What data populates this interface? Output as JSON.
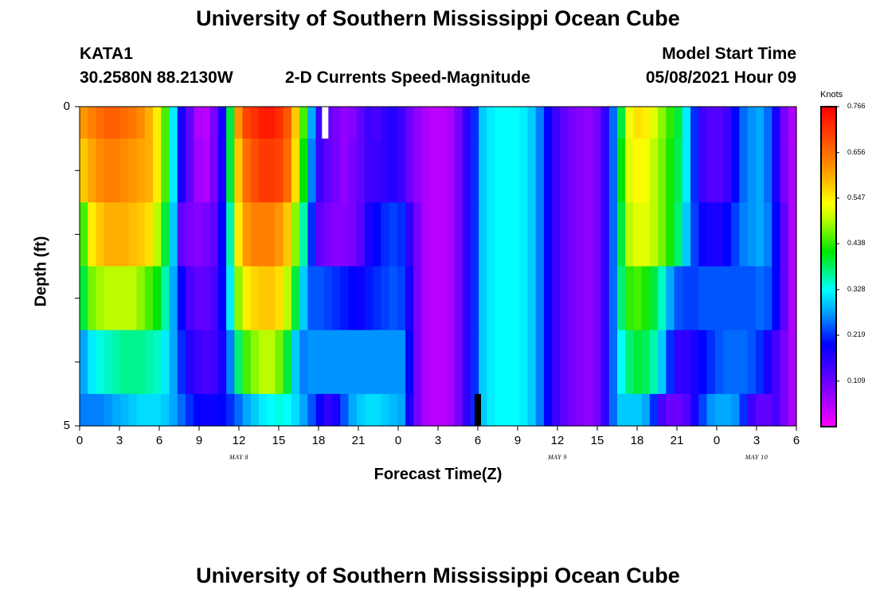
{
  "header": {
    "title_top": "University of Southern Mississippi Ocean Cube",
    "station": "KATA1",
    "coords": "30.2580N  88.2130W",
    "plot_title": "2-D Currents Speed-Magnitude",
    "model_label": "Model Start Time",
    "model_time": "05/08/2021 Hour 09"
  },
  "footer": {
    "title_bottom": "University of Southern Mississippi Ocean Cube"
  },
  "colorbar": {
    "unit": "Knots",
    "ticks": [
      "0.766",
      "0.656",
      "0.547",
      "0.438",
      "0.328",
      "0.219",
      "0.109"
    ],
    "min": 0.0,
    "max": 0.766
  },
  "chart_data": {
    "type": "heatmap",
    "title": "2-D Currents Speed-Magnitude",
    "xlabel": "Forecast Time(Z)",
    "ylabel": "Depth (ft)",
    "unit": "Knots",
    "x_tick_labels": [
      "0",
      "3",
      "6",
      "9",
      "12",
      "15",
      "18",
      "21",
      "0",
      "3",
      "6",
      "9",
      "12",
      "15",
      "18",
      "21",
      "0",
      "3",
      "6"
    ],
    "date_labels": [
      {
        "label": "MAY 8",
        "hour": 12
      },
      {
        "label": "MAY 9",
        "hour": 36
      },
      {
        "label": "MAY 10",
        "hour": 51
      }
    ],
    "y_tick_labels": [
      "0",
      "5"
    ],
    "xlim_hours": [
      0,
      54
    ],
    "ylim_ft": [
      0,
      5
    ],
    "depth_rows_ft": [
      0.5,
      1.5,
      2.5,
      3.5,
      4.5,
      5.0
    ],
    "marker_start_hour": 18.5,
    "marker_end_hour": 30,
    "rows": [
      [
        0.62,
        0.64,
        0.66,
        0.67,
        0.67,
        0.66,
        0.65,
        0.63,
        0.6,
        0.55,
        0.45,
        0.32,
        0.18,
        0.12,
        0.06,
        0.05,
        0.1,
        0.18,
        0.4,
        0.62,
        0.7,
        0.72,
        0.74,
        0.74,
        0.72,
        0.68,
        0.58,
        0.45,
        0.28,
        0.15,
        0.12,
        0.1,
        0.08,
        0.09,
        0.12,
        0.15,
        0.14,
        0.16,
        0.17,
        0.15,
        0.11,
        0.08,
        0.06,
        0.05,
        0.05,
        0.06,
        0.1,
        0.16,
        0.22,
        0.3,
        0.32,
        0.33,
        0.33,
        0.33,
        0.32,
        0.3,
        0.26,
        0.2,
        0.15,
        0.12,
        0.1,
        0.09,
        0.08,
        0.1,
        0.16,
        0.25,
        0.4,
        0.53,
        0.56,
        0.55,
        0.52,
        0.48,
        0.44,
        0.4,
        0.32,
        0.22,
        0.15,
        0.13,
        0.13,
        0.15,
        0.2,
        0.25,
        0.27,
        0.28,
        0.25,
        0.18,
        0.1,
        0.06
      ],
      [
        0.58,
        0.61,
        0.63,
        0.64,
        0.64,
        0.63,
        0.62,
        0.61,
        0.6,
        0.55,
        0.45,
        0.32,
        0.18,
        0.12,
        0.07,
        0.06,
        0.1,
        0.18,
        0.4,
        0.58,
        0.66,
        0.69,
        0.71,
        0.71,
        0.7,
        0.66,
        0.56,
        0.42,
        0.26,
        0.15,
        0.12,
        0.1,
        0.08,
        0.1,
        0.12,
        0.15,
        0.15,
        0.16,
        0.17,
        0.15,
        0.11,
        0.08,
        0.06,
        0.05,
        0.05,
        0.06,
        0.1,
        0.16,
        0.22,
        0.3,
        0.32,
        0.33,
        0.33,
        0.33,
        0.32,
        0.3,
        0.26,
        0.2,
        0.15,
        0.12,
        0.1,
        0.09,
        0.08,
        0.1,
        0.16,
        0.25,
        0.42,
        0.52,
        0.54,
        0.53,
        0.5,
        0.47,
        0.43,
        0.39,
        0.32,
        0.22,
        0.15,
        0.13,
        0.13,
        0.15,
        0.2,
        0.25,
        0.27,
        0.28,
        0.25,
        0.18,
        0.1,
        0.06
      ],
      [
        0.45,
        0.55,
        0.58,
        0.6,
        0.6,
        0.6,
        0.59,
        0.58,
        0.56,
        0.5,
        0.4,
        0.3,
        0.12,
        0.1,
        0.09,
        0.1,
        0.12,
        0.2,
        0.36,
        0.55,
        0.62,
        0.64,
        0.64,
        0.64,
        0.62,
        0.58,
        0.48,
        0.36,
        0.22,
        0.12,
        0.1,
        0.09,
        0.09,
        0.1,
        0.13,
        0.18,
        0.2,
        0.22,
        0.23,
        0.22,
        0.16,
        0.1,
        0.06,
        0.05,
        0.05,
        0.06,
        0.1,
        0.16,
        0.22,
        0.3,
        0.32,
        0.33,
        0.33,
        0.33,
        0.32,
        0.3,
        0.26,
        0.2,
        0.15,
        0.12,
        0.1,
        0.09,
        0.08,
        0.1,
        0.16,
        0.25,
        0.4,
        0.5,
        0.52,
        0.52,
        0.5,
        0.47,
        0.43,
        0.38,
        0.3,
        0.23,
        0.19,
        0.18,
        0.18,
        0.2,
        0.23,
        0.26,
        0.27,
        0.28,
        0.26,
        0.2,
        0.12,
        0.06
      ],
      [
        0.4,
        0.47,
        0.49,
        0.5,
        0.5,
        0.5,
        0.5,
        0.48,
        0.45,
        0.42,
        0.36,
        0.28,
        0.2,
        0.14,
        0.12,
        0.12,
        0.14,
        0.2,
        0.32,
        0.48,
        0.55,
        0.57,
        0.58,
        0.58,
        0.56,
        0.5,
        0.4,
        0.3,
        0.24,
        0.24,
        0.23,
        0.22,
        0.21,
        0.2,
        0.19,
        0.21,
        0.22,
        0.23,
        0.24,
        0.23,
        0.18,
        0.1,
        0.06,
        0.05,
        0.05,
        0.06,
        0.1,
        0.16,
        0.22,
        0.3,
        0.32,
        0.33,
        0.33,
        0.33,
        0.32,
        0.3,
        0.26,
        0.2,
        0.15,
        0.12,
        0.1,
        0.09,
        0.08,
        0.1,
        0.16,
        0.25,
        0.38,
        0.44,
        0.45,
        0.43,
        0.4,
        0.35,
        0.28,
        0.24,
        0.23,
        0.23,
        0.24,
        0.24,
        0.24,
        0.24,
        0.24,
        0.24,
        0.24,
        0.25,
        0.24,
        0.2,
        0.12,
        0.06
      ],
      [
        0.28,
        0.32,
        0.34,
        0.35,
        0.36,
        0.37,
        0.37,
        0.37,
        0.36,
        0.35,
        0.32,
        0.28,
        0.22,
        0.17,
        0.15,
        0.14,
        0.15,
        0.18,
        0.26,
        0.38,
        0.45,
        0.48,
        0.5,
        0.5,
        0.47,
        0.4,
        0.3,
        0.26,
        0.27,
        0.27,
        0.27,
        0.27,
        0.27,
        0.27,
        0.27,
        0.27,
        0.27,
        0.27,
        0.27,
        0.27,
        0.2,
        0.1,
        0.06,
        0.05,
        0.05,
        0.06,
        0.1,
        0.16,
        0.22,
        0.3,
        0.32,
        0.33,
        0.33,
        0.33,
        0.32,
        0.3,
        0.26,
        0.2,
        0.15,
        0.12,
        0.1,
        0.09,
        0.08,
        0.1,
        0.16,
        0.25,
        0.33,
        0.38,
        0.4,
        0.39,
        0.36,
        0.3,
        0.22,
        0.16,
        0.16,
        0.18,
        0.2,
        0.22,
        0.24,
        0.25,
        0.25,
        0.25,
        0.24,
        0.22,
        0.18,
        0.14,
        0.1,
        0.06
      ],
      [
        0.26,
        0.26,
        0.26,
        0.27,
        0.28,
        0.29,
        0.3,
        0.31,
        0.31,
        0.31,
        0.3,
        0.28,
        0.25,
        0.22,
        0.2,
        0.19,
        0.19,
        0.2,
        0.22,
        0.25,
        0.28,
        0.3,
        0.32,
        0.33,
        0.34,
        0.33,
        0.31,
        0.28,
        0.24,
        0.19,
        0.16,
        0.18,
        0.24,
        0.28,
        0.3,
        0.31,
        0.31,
        0.3,
        0.29,
        0.28,
        0.18,
        0.1,
        0.06,
        0.05,
        0.05,
        0.06,
        0.1,
        0.16,
        0.22,
        0.3,
        0.32,
        0.33,
        0.33,
        0.33,
        0.32,
        0.3,
        0.26,
        0.2,
        0.15,
        0.12,
        0.1,
        0.09,
        0.08,
        0.1,
        0.16,
        0.25,
        0.3,
        0.3,
        0.3,
        0.28,
        0.22,
        0.14,
        0.11,
        0.11,
        0.13,
        0.18,
        0.23,
        0.27,
        0.28,
        0.28,
        0.27,
        0.22,
        0.15,
        0.12,
        0.12,
        0.14,
        0.1,
        0.06
      ]
    ]
  }
}
